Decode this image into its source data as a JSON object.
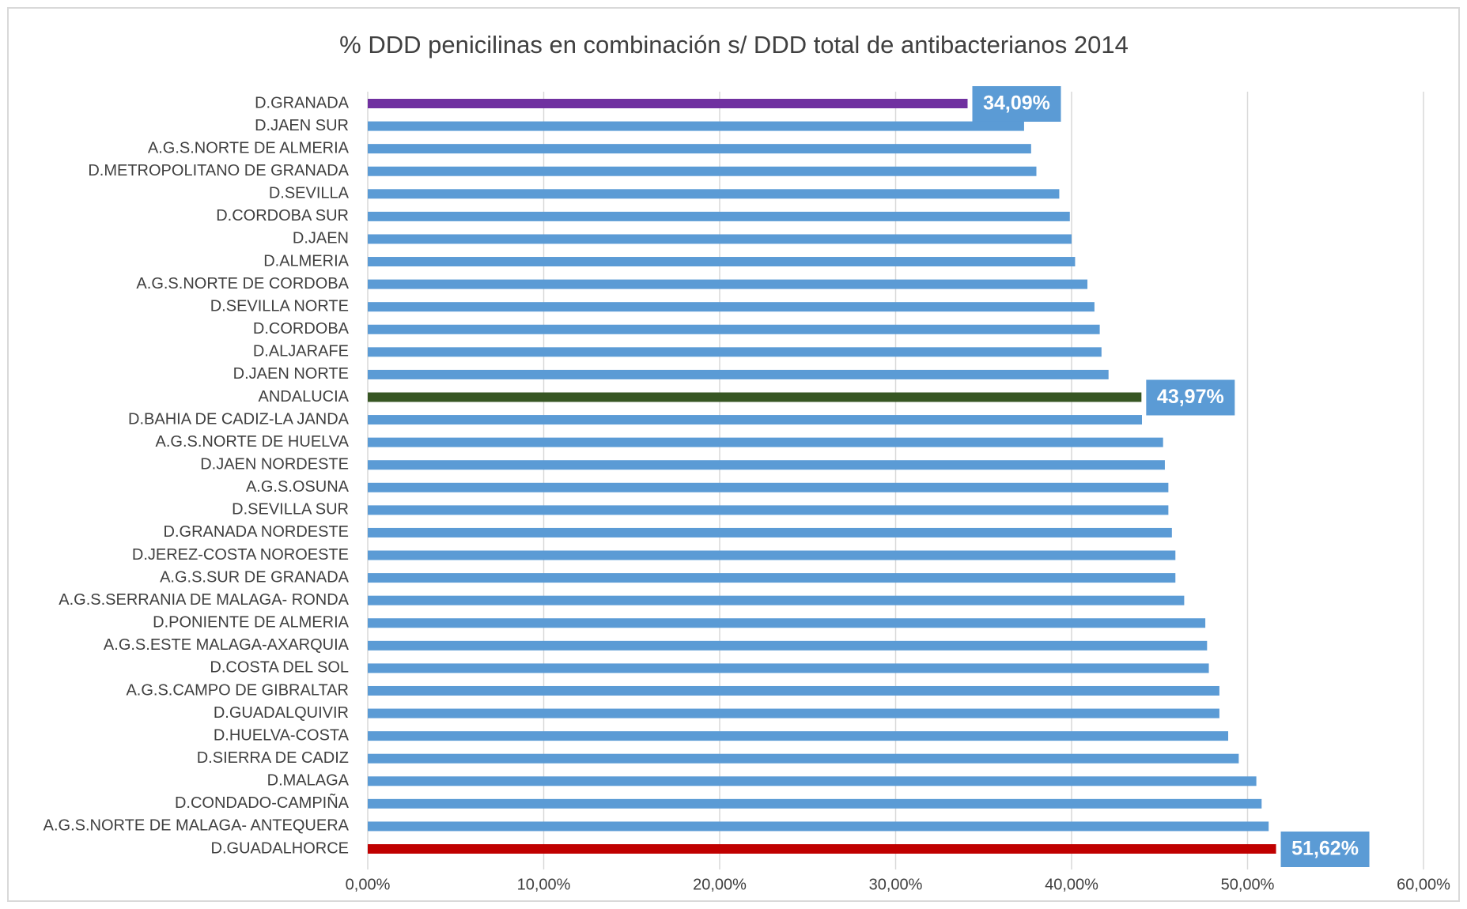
{
  "chart_data": {
    "type": "bar",
    "orientation": "horizontal",
    "title": "% DDD penicilinas en combinación s/ DDD total de antibacterianos 2014",
    "categories": [
      "D.GRANADA",
      "D.JAEN SUR",
      "A.G.S.NORTE DE ALMERIA",
      "D.METROPOLITANO DE GRANADA",
      "D.SEVILLA",
      "D.CORDOBA SUR",
      "D.JAEN",
      "D.ALMERIA",
      "A.G.S.NORTE DE CORDOBA",
      "D.SEVILLA NORTE",
      "D.CORDOBA",
      "D.ALJARAFE",
      "D.JAEN NORTE",
      "ANDALUCIA",
      "D.BAHIA DE CADIZ-LA JANDA",
      "A.G.S.NORTE DE HUELVA",
      "D.JAEN NORDESTE",
      "A.G.S.OSUNA",
      "D.SEVILLA SUR",
      "D.GRANADA NORDESTE",
      "D.JEREZ-COSTA NOROESTE",
      "A.G.S.SUR DE GRANADA",
      "A.G.S.SERRANIA DE MALAGA- RONDA",
      "D.PONIENTE DE ALMERIA",
      "A.G.S.ESTE MALAGA-AXARQUIA",
      "D.COSTA DEL SOL",
      "A.G.S.CAMPO DE GIBRALTAR",
      "D.GUADALQUIVIR",
      "D.HUELVA-COSTA",
      "D.SIERRA DE CADIZ",
      "D.MALAGA",
      "D.CONDADO-CAMPIÑA",
      "A.G.S.NORTE DE MALAGA- ANTEQUERA",
      "D.GUADALHORCE"
    ],
    "values": [
      34.09,
      37.3,
      37.7,
      38.0,
      39.3,
      39.9,
      40.0,
      40.2,
      40.9,
      41.3,
      41.6,
      41.7,
      42.1,
      43.97,
      44.0,
      45.2,
      45.3,
      45.5,
      45.5,
      45.7,
      45.9,
      45.9,
      46.4,
      47.6,
      47.7,
      47.8,
      48.4,
      48.4,
      48.9,
      49.5,
      50.5,
      50.8,
      51.2,
      51.62
    ],
    "value_labels": [
      "34,09%",
      null,
      null,
      null,
      null,
      null,
      null,
      null,
      null,
      null,
      null,
      null,
      null,
      "43,97%",
      null,
      null,
      null,
      null,
      null,
      null,
      null,
      null,
      null,
      null,
      null,
      null,
      null,
      null,
      null,
      null,
      null,
      null,
      null,
      "51,62%"
    ],
    "colors": [
      "#7030a0",
      "#5b9bd5",
      "#5b9bd5",
      "#5b9bd5",
      "#5b9bd5",
      "#5b9bd5",
      "#5b9bd5",
      "#5b9bd5",
      "#5b9bd5",
      "#5b9bd5",
      "#5b9bd5",
      "#5b9bd5",
      "#5b9bd5",
      "#375623",
      "#5b9bd5",
      "#5b9bd5",
      "#5b9bd5",
      "#5b9bd5",
      "#5b9bd5",
      "#5b9bd5",
      "#5b9bd5",
      "#5b9bd5",
      "#5b9bd5",
      "#5b9bd5",
      "#5b9bd5",
      "#5b9bd5",
      "#5b9bd5",
      "#5b9bd5",
      "#5b9bd5",
      "#5b9bd5",
      "#5b9bd5",
      "#5b9bd5",
      "#5b9bd5",
      "#c00000"
    ],
    "label_color": "#5b9bd5",
    "xlim": [
      0,
      60
    ],
    "xticks": [
      {
        "value": 0,
        "label": "0,00%"
      },
      {
        "value": 10,
        "label": "10,00%"
      },
      {
        "value": 20,
        "label": "20,00%"
      },
      {
        "value": 30,
        "label": "30,00%"
      },
      {
        "value": 40,
        "label": "40,00%"
      },
      {
        "value": 50,
        "label": "50,00%"
      },
      {
        "value": 60,
        "label": "60,00%"
      }
    ],
    "grid": true
  }
}
